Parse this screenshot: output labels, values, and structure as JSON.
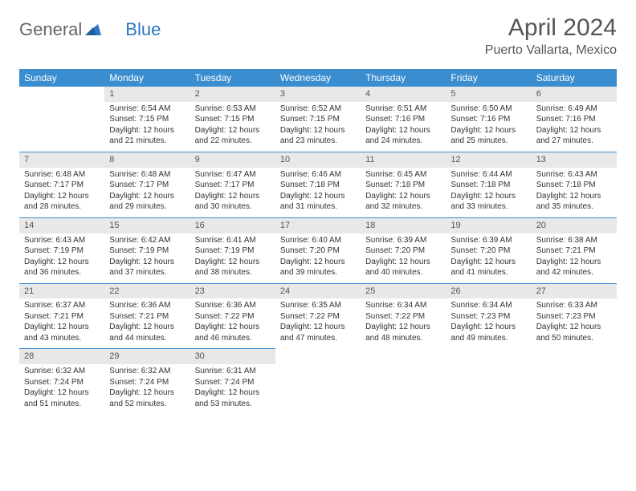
{
  "logo": {
    "text1": "General",
    "text2": "Blue"
  },
  "title": "April 2024",
  "location": "Puerto Vallarta, Mexico",
  "colors": {
    "header_bg": "#3a8dcf",
    "header_text": "#ffffff",
    "daynum_bg": "#e8e8e8",
    "row_divider": "#3a8dcf",
    "body_text": "#333333",
    "logo_gray": "#656565",
    "logo_blue": "#2a78bf"
  },
  "columns": [
    "Sunday",
    "Monday",
    "Tuesday",
    "Wednesday",
    "Thursday",
    "Friday",
    "Saturday"
  ],
  "weeks": [
    [
      null,
      {
        "n": "1",
        "sr": "Sunrise: 6:54 AM",
        "ss": "Sunset: 7:15 PM",
        "dl": "Daylight: 12 hours and 21 minutes."
      },
      {
        "n": "2",
        "sr": "Sunrise: 6:53 AM",
        "ss": "Sunset: 7:15 PM",
        "dl": "Daylight: 12 hours and 22 minutes."
      },
      {
        "n": "3",
        "sr": "Sunrise: 6:52 AM",
        "ss": "Sunset: 7:15 PM",
        "dl": "Daylight: 12 hours and 23 minutes."
      },
      {
        "n": "4",
        "sr": "Sunrise: 6:51 AM",
        "ss": "Sunset: 7:16 PM",
        "dl": "Daylight: 12 hours and 24 minutes."
      },
      {
        "n": "5",
        "sr": "Sunrise: 6:50 AM",
        "ss": "Sunset: 7:16 PM",
        "dl": "Daylight: 12 hours and 25 minutes."
      },
      {
        "n": "6",
        "sr": "Sunrise: 6:49 AM",
        "ss": "Sunset: 7:16 PM",
        "dl": "Daylight: 12 hours and 27 minutes."
      }
    ],
    [
      {
        "n": "7",
        "sr": "Sunrise: 6:48 AM",
        "ss": "Sunset: 7:17 PM",
        "dl": "Daylight: 12 hours and 28 minutes."
      },
      {
        "n": "8",
        "sr": "Sunrise: 6:48 AM",
        "ss": "Sunset: 7:17 PM",
        "dl": "Daylight: 12 hours and 29 minutes."
      },
      {
        "n": "9",
        "sr": "Sunrise: 6:47 AM",
        "ss": "Sunset: 7:17 PM",
        "dl": "Daylight: 12 hours and 30 minutes."
      },
      {
        "n": "10",
        "sr": "Sunrise: 6:46 AM",
        "ss": "Sunset: 7:18 PM",
        "dl": "Daylight: 12 hours and 31 minutes."
      },
      {
        "n": "11",
        "sr": "Sunrise: 6:45 AM",
        "ss": "Sunset: 7:18 PM",
        "dl": "Daylight: 12 hours and 32 minutes."
      },
      {
        "n": "12",
        "sr": "Sunrise: 6:44 AM",
        "ss": "Sunset: 7:18 PM",
        "dl": "Daylight: 12 hours and 33 minutes."
      },
      {
        "n": "13",
        "sr": "Sunrise: 6:43 AM",
        "ss": "Sunset: 7:18 PM",
        "dl": "Daylight: 12 hours and 35 minutes."
      }
    ],
    [
      {
        "n": "14",
        "sr": "Sunrise: 6:43 AM",
        "ss": "Sunset: 7:19 PM",
        "dl": "Daylight: 12 hours and 36 minutes."
      },
      {
        "n": "15",
        "sr": "Sunrise: 6:42 AM",
        "ss": "Sunset: 7:19 PM",
        "dl": "Daylight: 12 hours and 37 minutes."
      },
      {
        "n": "16",
        "sr": "Sunrise: 6:41 AM",
        "ss": "Sunset: 7:19 PM",
        "dl": "Daylight: 12 hours and 38 minutes."
      },
      {
        "n": "17",
        "sr": "Sunrise: 6:40 AM",
        "ss": "Sunset: 7:20 PM",
        "dl": "Daylight: 12 hours and 39 minutes."
      },
      {
        "n": "18",
        "sr": "Sunrise: 6:39 AM",
        "ss": "Sunset: 7:20 PM",
        "dl": "Daylight: 12 hours and 40 minutes."
      },
      {
        "n": "19",
        "sr": "Sunrise: 6:39 AM",
        "ss": "Sunset: 7:20 PM",
        "dl": "Daylight: 12 hours and 41 minutes."
      },
      {
        "n": "20",
        "sr": "Sunrise: 6:38 AM",
        "ss": "Sunset: 7:21 PM",
        "dl": "Daylight: 12 hours and 42 minutes."
      }
    ],
    [
      {
        "n": "21",
        "sr": "Sunrise: 6:37 AM",
        "ss": "Sunset: 7:21 PM",
        "dl": "Daylight: 12 hours and 43 minutes."
      },
      {
        "n": "22",
        "sr": "Sunrise: 6:36 AM",
        "ss": "Sunset: 7:21 PM",
        "dl": "Daylight: 12 hours and 44 minutes."
      },
      {
        "n": "23",
        "sr": "Sunrise: 6:36 AM",
        "ss": "Sunset: 7:22 PM",
        "dl": "Daylight: 12 hours and 46 minutes."
      },
      {
        "n": "24",
        "sr": "Sunrise: 6:35 AM",
        "ss": "Sunset: 7:22 PM",
        "dl": "Daylight: 12 hours and 47 minutes."
      },
      {
        "n": "25",
        "sr": "Sunrise: 6:34 AM",
        "ss": "Sunset: 7:22 PM",
        "dl": "Daylight: 12 hours and 48 minutes."
      },
      {
        "n": "26",
        "sr": "Sunrise: 6:34 AM",
        "ss": "Sunset: 7:23 PM",
        "dl": "Daylight: 12 hours and 49 minutes."
      },
      {
        "n": "27",
        "sr": "Sunrise: 6:33 AM",
        "ss": "Sunset: 7:23 PM",
        "dl": "Daylight: 12 hours and 50 minutes."
      }
    ],
    [
      {
        "n": "28",
        "sr": "Sunrise: 6:32 AM",
        "ss": "Sunset: 7:24 PM",
        "dl": "Daylight: 12 hours and 51 minutes."
      },
      {
        "n": "29",
        "sr": "Sunrise: 6:32 AM",
        "ss": "Sunset: 7:24 PM",
        "dl": "Daylight: 12 hours and 52 minutes."
      },
      {
        "n": "30",
        "sr": "Sunrise: 6:31 AM",
        "ss": "Sunset: 7:24 PM",
        "dl": "Daylight: 12 hours and 53 minutes."
      },
      null,
      null,
      null,
      null
    ]
  ]
}
